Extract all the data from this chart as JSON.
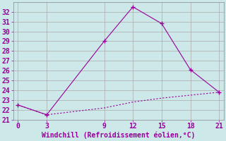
{
  "line1_x": [
    0,
    3,
    9,
    12,
    15,
    18,
    21
  ],
  "line1_y": [
    22.5,
    21.5,
    29,
    32.5,
    30.8,
    26.1,
    23.8
  ],
  "line2_x": [
    0,
    3,
    9,
    12,
    15,
    18,
    21
  ],
  "line2_y": [
    22.5,
    21.5,
    22.2,
    22.8,
    23.2,
    23.5,
    23.8
  ],
  "line_color": "#990099",
  "bg_color": "#cce8e8",
  "grid_color": "#aaaaaa",
  "xlabel": "Windchill (Refroidissement éolien,°C)",
  "xlabel_color": "#990099",
  "xlabel_fontsize": 7,
  "tick_color": "#990099",
  "tick_fontsize": 7,
  "xlim": [
    -0.5,
    21.5
  ],
  "ylim": [
    21,
    33
  ],
  "xticks": [
    0,
    3,
    9,
    12,
    15,
    18,
    21
  ],
  "yticks": [
    21,
    22,
    23,
    24,
    25,
    26,
    27,
    28,
    29,
    30,
    31,
    32
  ],
  "marker": "+"
}
